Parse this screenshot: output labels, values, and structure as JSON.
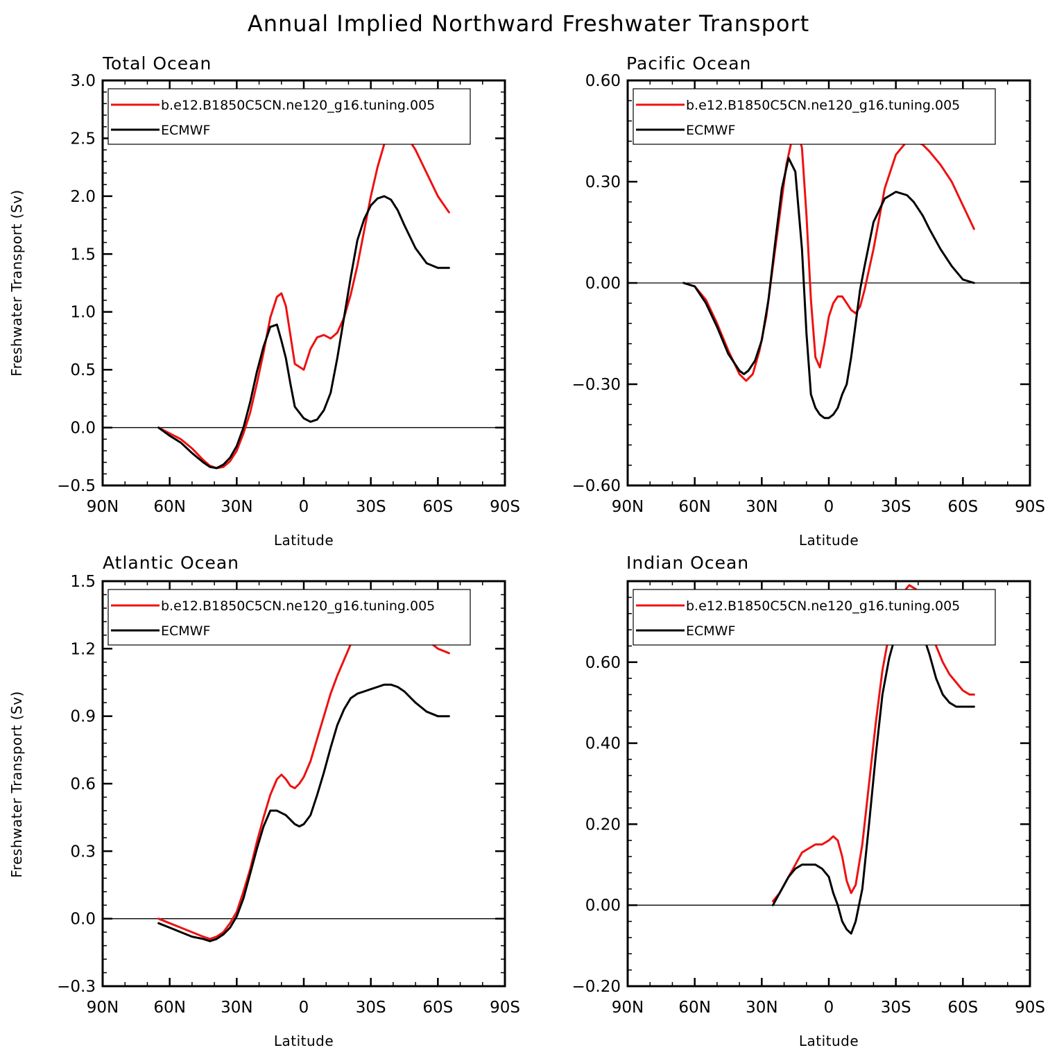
{
  "title": "Annual Implied Northward Freshwater Transport",
  "legend_entries": [
    "b.e12.B1850C5CN.ne120_g16.tuning.005",
    "ECMWF"
  ],
  "colors": {
    "model": "#ee1111",
    "ecmwf": "#000000"
  },
  "chart_data": [
    {
      "type": "line",
      "title": "Total Ocean",
      "xlabel": "Latitude",
      "ylabel": "Freshwater Transport (Sv)",
      "xlim": [
        90,
        -90
      ],
      "ylim": [
        -0.5,
        3.0
      ],
      "xticks": [
        90,
        60,
        30,
        0,
        -30,
        -60,
        -90
      ],
      "xtick_labels": [
        "90N",
        "60N",
        "30N",
        "0",
        "30S",
        "60S",
        "90S"
      ],
      "yticks": [
        -0.5,
        0.0,
        0.5,
        1.0,
        1.5,
        2.0,
        2.5,
        3.0
      ],
      "ytick_labels": [
        "-0.5",
        "0.0",
        "0.5",
        "1.0",
        "1.5",
        "2.0",
        "2.5",
        "3.0"
      ],
      "legend": "top",
      "series": [
        {
          "name": "b.e12.B1850C5CN.ne120_g16.tuning.005",
          "x": [
            65,
            60,
            55,
            50,
            45,
            42,
            39,
            36,
            33,
            30,
            27,
            24,
            21,
            18,
            15,
            12,
            10,
            8,
            6,
            4,
            0,
            -3,
            -6,
            -9,
            -12,
            -15,
            -18,
            -21,
            -24,
            -27,
            -30,
            -33,
            -36,
            -39,
            -42,
            -45,
            -50,
            -55,
            -60,
            -65
          ],
          "y": [
            0.0,
            -0.05,
            -0.1,
            -0.18,
            -0.28,
            -0.33,
            -0.35,
            -0.34,
            -0.29,
            -0.2,
            -0.05,
            0.13,
            0.38,
            0.65,
            0.95,
            1.13,
            1.16,
            1.05,
            0.8,
            0.55,
            0.5,
            0.68,
            0.78,
            0.8,
            0.77,
            0.82,
            0.95,
            1.15,
            1.4,
            1.7,
            2.0,
            2.25,
            2.45,
            2.55,
            2.58,
            2.55,
            2.4,
            2.2,
            2.0,
            1.86
          ]
        },
        {
          "name": "ECMWF",
          "x": [
            65,
            60,
            55,
            50,
            45,
            42,
            39,
            36,
            33,
            30,
            27,
            24,
            21,
            18,
            15,
            12,
            10,
            8,
            6,
            4,
            0,
            -3,
            -6,
            -9,
            -12,
            -15,
            -18,
            -21,
            -24,
            -27,
            -30,
            -33,
            -36,
            -39,
            -42,
            -45,
            -50,
            -55,
            -60,
            -65
          ],
          "y": [
            0.0,
            -0.07,
            -0.13,
            -0.22,
            -0.3,
            -0.34,
            -0.35,
            -0.32,
            -0.26,
            -0.16,
            0.0,
            0.22,
            0.48,
            0.7,
            0.87,
            0.89,
            0.75,
            0.6,
            0.38,
            0.18,
            0.08,
            0.05,
            0.07,
            0.15,
            0.3,
            0.6,
            0.95,
            1.3,
            1.62,
            1.8,
            1.92,
            1.98,
            2.0,
            1.97,
            1.88,
            1.75,
            1.55,
            1.42,
            1.38,
            1.38
          ]
        }
      ]
    },
    {
      "type": "line",
      "title": "Pacific Ocean",
      "xlabel": "Latitude",
      "ylabel": "",
      "xlim": [
        90,
        -90
      ],
      "ylim": [
        -0.6,
        0.6
      ],
      "xticks": [
        90,
        60,
        30,
        0,
        -30,
        -60,
        -90
      ],
      "xtick_labels": [
        "90N",
        "60N",
        "30N",
        "0",
        "30S",
        "60S",
        "90S"
      ],
      "yticks": [
        -0.6,
        -0.3,
        0.0,
        0.3,
        0.6
      ],
      "ytick_labels": [
        "-0.60",
        "-0.30",
        "0.00",
        "0.30",
        "0.60"
      ],
      "legend": "top",
      "series": [
        {
          "name": "b.e12.B1850C5CN.ne120_g16.tuning.005",
          "x": [
            65,
            60,
            55,
            50,
            45,
            40,
            37,
            34,
            31,
            28,
            25,
            22,
            19,
            16,
            14,
            12,
            10,
            8,
            6,
            4,
            2,
            0,
            -2,
            -4,
            -6,
            -8,
            -10,
            -12,
            -14,
            -16,
            -20,
            -25,
            -30,
            -35,
            -38,
            -42,
            -45,
            -50,
            -55,
            -60,
            -65
          ],
          "y": [
            0.0,
            -0.01,
            -0.05,
            -0.12,
            -0.2,
            -0.27,
            -0.29,
            -0.27,
            -0.2,
            -0.1,
            0.05,
            0.2,
            0.35,
            0.44,
            0.45,
            0.4,
            0.2,
            -0.05,
            -0.22,
            -0.25,
            -0.18,
            -0.1,
            -0.06,
            -0.04,
            -0.04,
            -0.06,
            -0.08,
            -0.09,
            -0.07,
            -0.02,
            0.1,
            0.28,
            0.38,
            0.42,
            0.42,
            0.41,
            0.39,
            0.35,
            0.3,
            0.23,
            0.16
          ]
        },
        {
          "name": "ECMWF",
          "x": [
            65,
            60,
            55,
            50,
            45,
            40,
            38,
            36,
            33,
            30,
            27,
            24,
            21,
            18,
            15,
            12,
            10,
            8,
            6,
            4,
            2,
            0,
            -2,
            -4,
            -6,
            -8,
            -10,
            -12,
            -14,
            -16,
            -20,
            -25,
            -30,
            -35,
            -38,
            -42,
            -45,
            -50,
            -55,
            -60,
            -65
          ],
          "y": [
            0.0,
            -0.01,
            -0.06,
            -0.13,
            -0.21,
            -0.26,
            -0.27,
            -0.26,
            -0.23,
            -0.17,
            -0.05,
            0.12,
            0.28,
            0.37,
            0.33,
            0.1,
            -0.15,
            -0.33,
            -0.37,
            -0.39,
            -0.4,
            -0.4,
            -0.39,
            -0.37,
            -0.33,
            -0.3,
            -0.22,
            -0.12,
            -0.02,
            0.05,
            0.18,
            0.25,
            0.27,
            0.26,
            0.24,
            0.2,
            0.16,
            0.1,
            0.05,
            0.01,
            0.0
          ]
        }
      ]
    },
    {
      "type": "line",
      "title": "Atlantic Ocean",
      "xlabel": "Latitude",
      "ylabel": "Freshwater Transport (Sv)",
      "xlim": [
        90,
        -90
      ],
      "ylim": [
        -0.3,
        1.5
      ],
      "xticks": [
        90,
        60,
        30,
        0,
        -30,
        -60,
        -90
      ],
      "xtick_labels": [
        "90N",
        "60N",
        "30N",
        "0",
        "30S",
        "60S",
        "90S"
      ],
      "yticks": [
        -0.3,
        0.0,
        0.3,
        0.6,
        0.9,
        1.2,
        1.5
      ],
      "ytick_labels": [
        "-0.3",
        "0.0",
        "0.3",
        "0.6",
        "0.9",
        "1.2",
        "1.5"
      ],
      "legend": "top",
      "series": [
        {
          "name": "b.e12.B1850C5CN.ne120_g16.tuning.005",
          "x": [
            65,
            60,
            55,
            50,
            45,
            42,
            39,
            36,
            33,
            30,
            27,
            24,
            21,
            18,
            15,
            12,
            10,
            8,
            6,
            4,
            2,
            0,
            -3,
            -6,
            -9,
            -12,
            -15,
            -18,
            -21,
            -24,
            -27,
            -30,
            -33,
            -36,
            -39,
            -42,
            -45,
            -50,
            -55,
            -60,
            -65
          ],
          "y": [
            0.0,
            -0.02,
            -0.04,
            -0.06,
            -0.08,
            -0.09,
            -0.08,
            -0.06,
            -0.02,
            0.03,
            0.12,
            0.22,
            0.34,
            0.45,
            0.55,
            0.62,
            0.64,
            0.62,
            0.59,
            0.58,
            0.6,
            0.63,
            0.7,
            0.8,
            0.9,
            1.0,
            1.08,
            1.15,
            1.22,
            1.28,
            1.33,
            1.36,
            1.38,
            1.39,
            1.39,
            1.37,
            1.34,
            1.29,
            1.24,
            1.2,
            1.18
          ]
        },
        {
          "name": "ECMWF",
          "x": [
            65,
            60,
            55,
            50,
            45,
            42,
            39,
            36,
            33,
            30,
            27,
            24,
            21,
            18,
            15,
            12,
            10,
            8,
            6,
            4,
            2,
            0,
            -3,
            -6,
            -9,
            -12,
            -15,
            -18,
            -21,
            -24,
            -27,
            -30,
            -33,
            -36,
            -39,
            -42,
            -45,
            -50,
            -55,
            -60,
            -65
          ],
          "y": [
            -0.02,
            -0.04,
            -0.06,
            -0.08,
            -0.09,
            -0.1,
            -0.09,
            -0.07,
            -0.04,
            0.01,
            0.09,
            0.2,
            0.31,
            0.41,
            0.48,
            0.48,
            0.47,
            0.46,
            0.44,
            0.42,
            0.41,
            0.42,
            0.46,
            0.55,
            0.65,
            0.76,
            0.86,
            0.93,
            0.98,
            1.0,
            1.01,
            1.02,
            1.03,
            1.04,
            1.04,
            1.03,
            1.01,
            0.96,
            0.92,
            0.9,
            0.9
          ]
        }
      ]
    },
    {
      "type": "line",
      "title": "Indian Ocean",
      "xlabel": "Latitude",
      "ylabel": "",
      "xlim": [
        90,
        -90
      ],
      "ylim": [
        -0.2,
        0.8
      ],
      "xticks": [
        90,
        60,
        30,
        0,
        -30,
        -60,
        -90
      ],
      "xtick_labels": [
        "90N",
        "60N",
        "30N",
        "0",
        "30S",
        "60S",
        "90S"
      ],
      "yticks": [
        -0.2,
        0.0,
        0.2,
        0.4,
        0.6
      ],
      "ytick_labels": [
        "-0.20",
        "0.00",
        "0.20",
        "0.40",
        "0.60"
      ],
      "legend": "top",
      "series": [
        {
          "name": "b.e12.B1850C5CN.ne120_g16.tuning.005",
          "x": [
            25,
            22,
            18,
            15,
            12,
            9,
            6,
            3,
            0,
            -2,
            -4,
            -6,
            -8,
            -10,
            -12,
            -15,
            -18,
            -21,
            -24,
            -27,
            -30,
            -33,
            -36,
            -39,
            -42,
            -45,
            -48,
            -51,
            -54,
            -57,
            -60,
            -63,
            -65
          ],
          "y": [
            0.01,
            0.03,
            0.07,
            0.1,
            0.13,
            0.14,
            0.15,
            0.15,
            0.16,
            0.17,
            0.16,
            0.12,
            0.06,
            0.03,
            0.05,
            0.15,
            0.3,
            0.45,
            0.58,
            0.67,
            0.73,
            0.77,
            0.79,
            0.78,
            0.75,
            0.7,
            0.64,
            0.6,
            0.57,
            0.55,
            0.53,
            0.52,
            0.52
          ]
        },
        {
          "name": "ECMWF",
          "x": [
            25,
            22,
            18,
            15,
            12,
            9,
            6,
            3,
            0,
            -2,
            -4,
            -6,
            -8,
            -10,
            -12,
            -15,
            -18,
            -21,
            -24,
            -27,
            -30,
            -33,
            -36,
            -39,
            -42,
            -45,
            -48,
            -51,
            -54,
            -57,
            -60,
            -63,
            -65
          ],
          "y": [
            0.0,
            0.03,
            0.07,
            0.09,
            0.1,
            0.1,
            0.1,
            0.09,
            0.07,
            0.03,
            0.0,
            -0.04,
            -0.06,
            -0.07,
            -0.04,
            0.04,
            0.2,
            0.37,
            0.52,
            0.61,
            0.67,
            0.7,
            0.71,
            0.7,
            0.67,
            0.62,
            0.56,
            0.52,
            0.5,
            0.49,
            0.49,
            0.49,
            0.49
          ]
        }
      ]
    }
  ]
}
